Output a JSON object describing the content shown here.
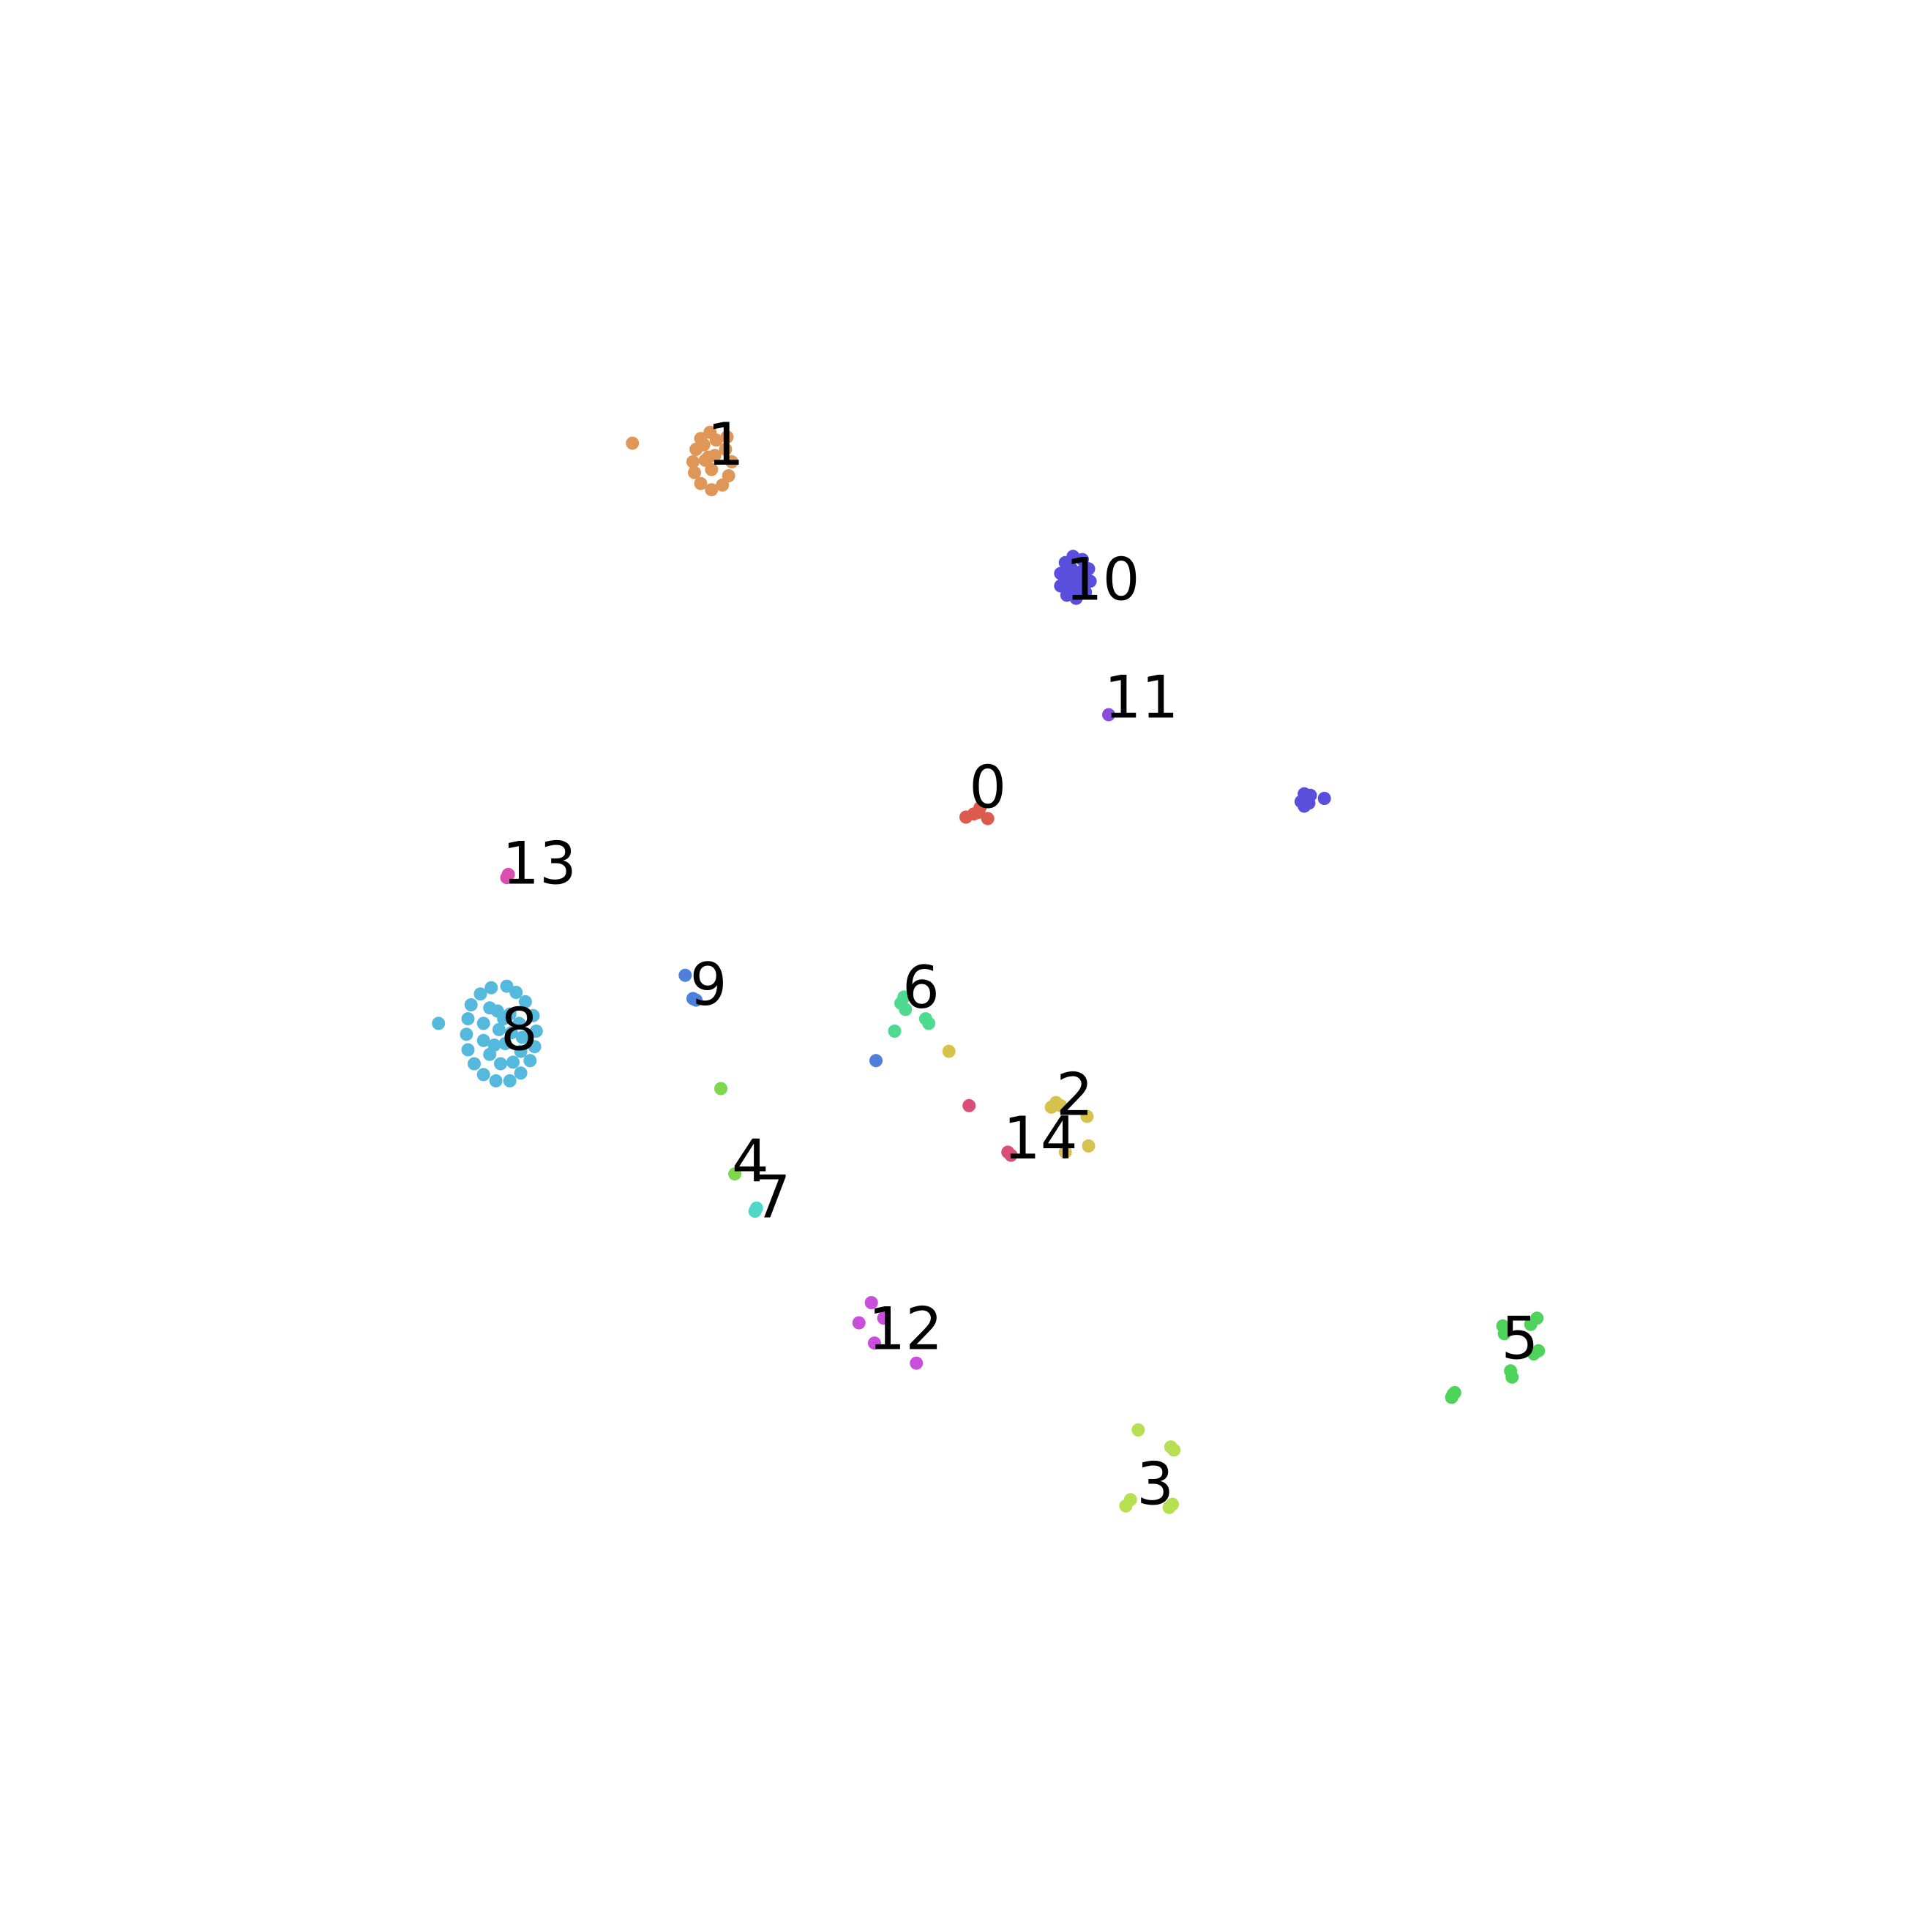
{
  "chart_data": {
    "type": "scatter",
    "title": "",
    "xlabel": "",
    "ylabel": "",
    "axes_visible": false,
    "grid": false,
    "legend": "none",
    "xlim": [
      0,
      100
    ],
    "ylim": [
      0,
      100
    ],
    "clusters": [
      {
        "label": "0",
        "color": "#dc5a4e",
        "label_pos": [
          51.4,
          61.5
        ],
        "points": [
          [
            50.0,
            59.6
          ],
          [
            50.5,
            59.8
          ],
          [
            50.9,
            60.2
          ],
          [
            51.4,
            59.5
          ],
          [
            50.8,
            59.9
          ]
        ]
      },
      {
        "label": "1",
        "color": "#df9657",
        "label_pos": [
          34.5,
          83.6
        ],
        "points": [
          [
            28.5,
            83.7
          ],
          [
            33.5,
            84.4
          ],
          [
            32.9,
            84.0
          ],
          [
            32.6,
            83.3
          ],
          [
            32.4,
            82.5
          ],
          [
            32.5,
            81.8
          ],
          [
            32.9,
            81.1
          ],
          [
            33.6,
            80.7
          ],
          [
            34.3,
            81.0
          ],
          [
            34.7,
            81.6
          ],
          [
            33.2,
            82.6
          ],
          [
            33.8,
            82.9
          ],
          [
            34.5,
            83.3
          ],
          [
            33.6,
            82.0
          ],
          [
            34.9,
            82.5
          ],
          [
            33.1,
            83.6
          ],
          [
            34.6,
            84.1
          ],
          [
            33.9,
            83.9
          ],
          [
            33.4,
            82.8
          ]
        ]
      },
      {
        "label": "2",
        "color": "#d8c24e",
        "label_pos": [
          57.0,
          41.7
        ],
        "points": [
          [
            55.5,
            40.9
          ],
          [
            55.8,
            41.2
          ],
          [
            57.8,
            40.3
          ],
          [
            57.9,
            38.4
          ],
          [
            56.4,
            38.0
          ],
          [
            56.1,
            41.0
          ]
        ]
      },
      {
        "label": "3",
        "color": "#b6df51",
        "label_pos": [
          62.2,
          16.6
        ],
        "points": [
          [
            61.1,
            20.1
          ],
          [
            63.2,
            19.0
          ],
          [
            63.4,
            18.8
          ],
          [
            60.3,
            15.2
          ],
          [
            60.6,
            15.6
          ],
          [
            63.1,
            15.1
          ],
          [
            63.3,
            15.3
          ]
        ]
      },
      {
        "label": "4",
        "color": "#7dd84f",
        "label_pos": [
          36.1,
          37.4
        ],
        "points": [
          [
            34.2,
            42.1
          ],
          [
            35.1,
            36.6
          ]
        ]
      },
      {
        "label": "5",
        "color": "#4dd45a",
        "label_pos": [
          85.7,
          26.0
        ],
        "points": [
          [
            84.6,
            26.8
          ],
          [
            84.7,
            26.3
          ],
          [
            86.8,
            27.3
          ],
          [
            86.4,
            26.9
          ],
          [
            86.6,
            25.0
          ],
          [
            86.9,
            25.2
          ],
          [
            85.1,
            23.9
          ],
          [
            85.2,
            23.5
          ],
          [
            81.3,
            22.2
          ],
          [
            81.5,
            22.5
          ],
          [
            81.4,
            22.4
          ]
        ]
      },
      {
        "label": "6",
        "color": "#4fdb8f",
        "label_pos": [
          47.1,
          48.6
        ],
        "points": [
          [
            46.0,
            48.0
          ],
          [
            45.8,
            47.6
          ],
          [
            46.1,
            47.2
          ],
          [
            47.4,
            46.6
          ],
          [
            47.6,
            46.3
          ],
          [
            45.4,
            45.8
          ]
        ]
      },
      {
        "label": "7",
        "color": "#4fd8c9",
        "label_pos": [
          37.5,
          35.1
        ],
        "points": [
          [
            36.4,
            34.2
          ],
          [
            36.5,
            34.4
          ]
        ]
      },
      {
        "label": "8",
        "color": "#55b9dd",
        "label_pos": [
          21.2,
          45.9
        ],
        "points": [
          [
            16.0,
            46.3
          ],
          [
            20.4,
            48.7
          ],
          [
            19.4,
            48.6
          ],
          [
            18.7,
            48.2
          ],
          [
            18.1,
            47.5
          ],
          [
            17.9,
            46.6
          ],
          [
            17.8,
            45.6
          ],
          [
            17.9,
            44.6
          ],
          [
            18.3,
            43.7
          ],
          [
            18.9,
            43.0
          ],
          [
            19.7,
            42.6
          ],
          [
            20.6,
            42.6
          ],
          [
            21.3,
            43.1
          ],
          [
            21.9,
            43.9
          ],
          [
            22.2,
            44.8
          ],
          [
            22.3,
            45.8
          ],
          [
            22.1,
            46.8
          ],
          [
            21.6,
            47.7
          ],
          [
            21.0,
            48.3
          ],
          [
            19.3,
            47.3
          ],
          [
            18.9,
            46.3
          ],
          [
            18.9,
            45.2
          ],
          [
            19.3,
            44.3
          ],
          [
            20.0,
            43.7
          ],
          [
            20.8,
            43.8
          ],
          [
            21.3,
            44.5
          ],
          [
            21.4,
            45.4
          ],
          [
            21.2,
            46.3
          ],
          [
            20.6,
            46.9
          ],
          [
            19.8,
            47.1
          ],
          [
            19.9,
            45.9
          ],
          [
            20.3,
            45.0
          ],
          [
            20.7,
            45.7
          ],
          [
            19.6,
            44.9
          ],
          [
            20.2,
            46.6
          ]
        ]
      },
      {
        "label": "9",
        "color": "#4e7fdb",
        "label_pos": [
          33.4,
          48.8
        ],
        "points": [
          [
            31.9,
            49.4
          ],
          [
            32.4,
            47.9
          ],
          [
            32.6,
            47.8
          ],
          [
            44.2,
            43.9
          ]
        ]
      },
      {
        "label": "10",
        "color": "#5a4edc",
        "label_pos": [
          58.8,
          74.9
        ],
        "points": [
          [
            56.1,
            75.3
          ],
          [
            56.4,
            76.0
          ],
          [
            56.9,
            76.4
          ],
          [
            57.5,
            76.2
          ],
          [
            57.9,
            75.6
          ],
          [
            58.0,
            74.8
          ],
          [
            57.7,
            74.1
          ],
          [
            57.1,
            73.7
          ],
          [
            56.5,
            73.9
          ],
          [
            56.1,
            74.5
          ],
          [
            56.8,
            75.6
          ],
          [
            57.4,
            75.4
          ],
          [
            57.5,
            74.6
          ],
          [
            56.9,
            74.3
          ],
          [
            56.7,
            74.9
          ],
          [
            57.2,
            75.0
          ],
          [
            71.8,
            61.1
          ],
          [
            71.6,
            60.6
          ],
          [
            71.8,
            60.3
          ],
          [
            72.1,
            60.5
          ],
          [
            72.2,
            61.0
          ],
          [
            73.1,
            60.8
          ]
        ]
      },
      {
        "label": "11",
        "color": "#8a4edc",
        "label_pos": [
          61.3,
          67.3
        ],
        "points": [
          [
            59.2,
            66.2
          ]
        ]
      },
      {
        "label": "12",
        "color": "#c84edb",
        "label_pos": [
          46.1,
          26.6
        ],
        "points": [
          [
            43.9,
            28.3
          ],
          [
            43.1,
            27.0
          ],
          [
            44.7,
            27.3
          ],
          [
            44.1,
            25.7
          ],
          [
            46.8,
            24.4
          ]
        ]
      },
      {
        "label": "13",
        "color": "#db4eb1",
        "label_pos": [
          22.5,
          56.6
        ],
        "points": [
          [
            20.4,
            55.7
          ],
          [
            20.5,
            55.9
          ]
        ]
      },
      {
        "label": "14",
        "color": "#dc4e7a",
        "label_pos": [
          54.8,
          38.9
        ],
        "points": [
          [
            50.2,
            41.0
          ],
          [
            52.7,
            38.0
          ],
          [
            52.9,
            37.8
          ]
        ]
      },
      {
        "label": "",
        "color": "#d8c24e",
        "label_pos": null,
        "points": [
          [
            48.9,
            44.5
          ]
        ]
      }
    ]
  }
}
